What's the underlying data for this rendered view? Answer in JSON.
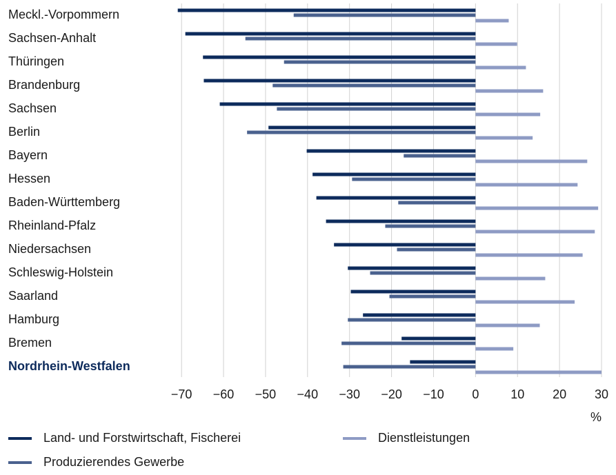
{
  "chart_data": {
    "type": "barh",
    "categories": [
      "Meckl.-Vorpommern",
      "Sachsen-Anhalt",
      "Thüringen",
      "Brandenburg",
      "Sachsen",
      "Berlin",
      "Bayern",
      "Hessen",
      "Baden-Württemberg",
      "Rheinland-Pfalz",
      "Niedersachsen",
      "Schleswig-Holstein",
      "Saarland",
      "Hamburg",
      "Bremen",
      "Nordrhein-Westfalen"
    ],
    "highlight": "Nordrhein-Westfalen",
    "series": [
      {
        "name": "Land- und Forstwirtschaft, Fischerei",
        "color": "#0d2b5c",
        "values": [
          -70.9,
          -69.1,
          -64.9,
          -64.7,
          -60.9,
          -49.3,
          -40.2,
          -38.8,
          -37.9,
          -35.6,
          -33.7,
          -30.4,
          -29.7,
          -26.8,
          -17.6,
          -15.6
        ]
      },
      {
        "name": "Produzierendes Gewerbe",
        "color": "#4a618e",
        "values": [
          -43.3,
          -54.8,
          -45.6,
          -48.3,
          -47.3,
          -54.4,
          -17.1,
          -29.4,
          -18.4,
          -21.5,
          -18.7,
          -25.1,
          -20.5,
          -30.4,
          -31.9,
          -31.5
        ]
      },
      {
        "name": "Dienstleistungen",
        "color": "#8e9bc4",
        "values": [
          7.9,
          9.9,
          12.0,
          16.1,
          15.4,
          13.6,
          26.6,
          24.3,
          29.2,
          28.4,
          25.5,
          16.6,
          23.6,
          15.3,
          9.0,
          30.0
        ]
      }
    ],
    "xlabel": "%",
    "xlim": [
      -72,
      30
    ],
    "xticks": [
      {
        "value": -70,
        "label": "−70"
      },
      {
        "value": -60,
        "label": "−60"
      },
      {
        "value": -50,
        "label": "−50"
      },
      {
        "value": -40,
        "label": "−40"
      },
      {
        "value": -30,
        "label": "−30"
      },
      {
        "value": -20,
        "label": "−20"
      },
      {
        "value": -10,
        "label": "−10"
      },
      0,
      10,
      20,
      30
    ],
    "grid": true
  }
}
